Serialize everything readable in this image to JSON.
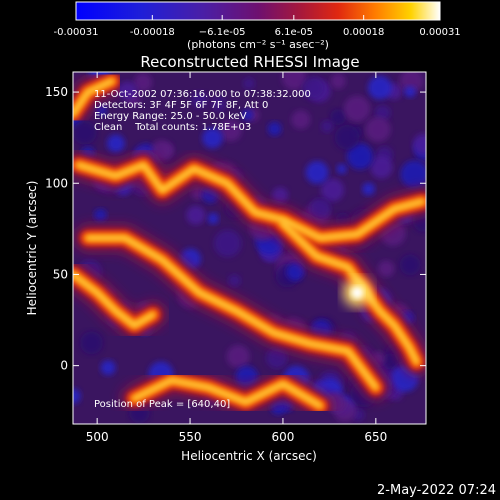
{
  "chart_data": {
    "type": "heatmap",
    "title": "Reconstructed RHESSI Image",
    "xlabel": "Heliocentric X (arcsec)",
    "ylabel": "Heliocentric Y (arcsec)",
    "xlim": [
      487,
      677
    ],
    "ylim": [
      -32,
      161
    ],
    "xticks": [
      500,
      550,
      600,
      650
    ],
    "yticks": [
      0,
      50,
      100,
      150
    ],
    "colorbar": {
      "range": [
        -0.00031,
        0.00031
      ],
      "ticks": [
        -0.00031,
        -0.00018,
        -6.1e-05,
        6.1e-05,
        0.00018,
        0.00031
      ],
      "tick_labels": [
        "-0.00031",
        "-0.00018",
        "−6.1e-05",
        "6.1e-05",
        "0.00018",
        "0.00031"
      ],
      "units": "(photons cm⁻² s⁻¹ asec⁻²)",
      "colormap": "blue-purple-red-yellow-white"
    },
    "info_lines": [
      "11-Oct-2002 07:36:16.000 to 07:38:32.000",
      "Detectors: 3F 4F 5F 6F 7F 8F, Att 0",
      "Energy Range: 25.0 - 50.0 keV",
      "Clean    Total counts: 1.78E+03"
    ],
    "peak_label": "Position of Peak = [640,40]",
    "bright_ridges": [
      {
        "name": "northern arc",
        "points": [
          [
            490,
            110
          ],
          [
            510,
            104
          ],
          [
            525,
            110
          ],
          [
            535,
            96
          ],
          [
            552,
            108
          ],
          [
            570,
            100
          ],
          [
            585,
            84
          ],
          [
            600,
            80
          ],
          [
            620,
            70
          ],
          [
            640,
            72
          ],
          [
            660,
            86
          ],
          [
            675,
            90
          ]
        ]
      },
      {
        "name": "central ridge",
        "points": [
          [
            495,
            70
          ],
          [
            515,
            70
          ],
          [
            535,
            58
          ],
          [
            555,
            40
          ],
          [
            575,
            30
          ],
          [
            595,
            18
          ],
          [
            615,
            12
          ],
          [
            635,
            8
          ],
          [
            650,
            -12
          ]
        ]
      },
      {
        "name": "eastern bright band",
        "points": [
          [
            600,
            78
          ],
          [
            618,
            60
          ],
          [
            635,
            54
          ],
          [
            645,
            40
          ],
          [
            652,
            30
          ],
          [
            660,
            22
          ],
          [
            668,
            10
          ],
          [
            672,
            2
          ]
        ]
      },
      {
        "name": "southern ridge",
        "points": [
          [
            520,
            -18
          ],
          [
            540,
            -8
          ],
          [
            560,
            -12
          ],
          [
            580,
            -20
          ],
          [
            600,
            -10
          ],
          [
            620,
            -22
          ]
        ]
      },
      {
        "name": "western spur",
        "points": [
          [
            487,
            50
          ],
          [
            500,
            40
          ],
          [
            510,
            30
          ],
          [
            520,
            22
          ],
          [
            530,
            28
          ]
        ]
      },
      {
        "name": "upper-left knot",
        "points": [
          [
            487,
            138
          ],
          [
            495,
            150
          ],
          [
            508,
            156
          ]
        ]
      }
    ],
    "peak": {
      "x": 640,
      "y": 40
    }
  },
  "footer": {
    "timestamp": "2-May-2022 07:24"
  }
}
